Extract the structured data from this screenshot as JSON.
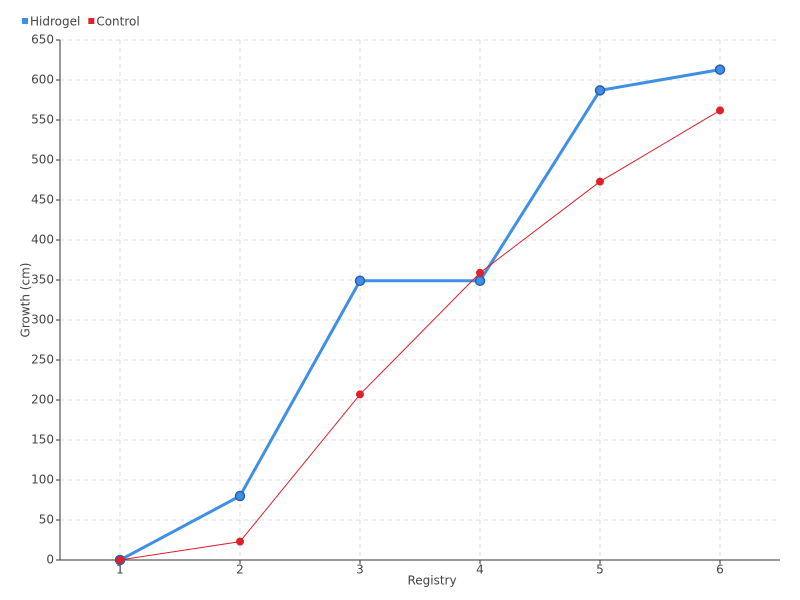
{
  "chart_data": {
    "type": "line",
    "x_label": "Registry",
    "y_label": "Growth (cm)",
    "x": [
      1,
      2,
      3,
      4,
      5,
      6
    ],
    "series": [
      {
        "name": "Hidrogel",
        "color": "#3f8fe8",
        "values": [
          0,
          80,
          349,
          349,
          587,
          613
        ]
      },
      {
        "name": "Control",
        "color": "#e0202a",
        "values": [
          0,
          23,
          207,
          359,
          473,
          562
        ]
      }
    ],
    "xlim": [
      0.5,
      6.5
    ],
    "xticks": [
      1,
      2,
      3,
      4,
      5,
      6
    ],
    "ylim": [
      0,
      650
    ],
    "yticks": [
      0,
      50,
      100,
      150,
      200,
      250,
      300,
      350,
      400,
      450,
      500,
      550,
      600,
      650
    ],
    "grid": true,
    "legend": "top-left"
  }
}
